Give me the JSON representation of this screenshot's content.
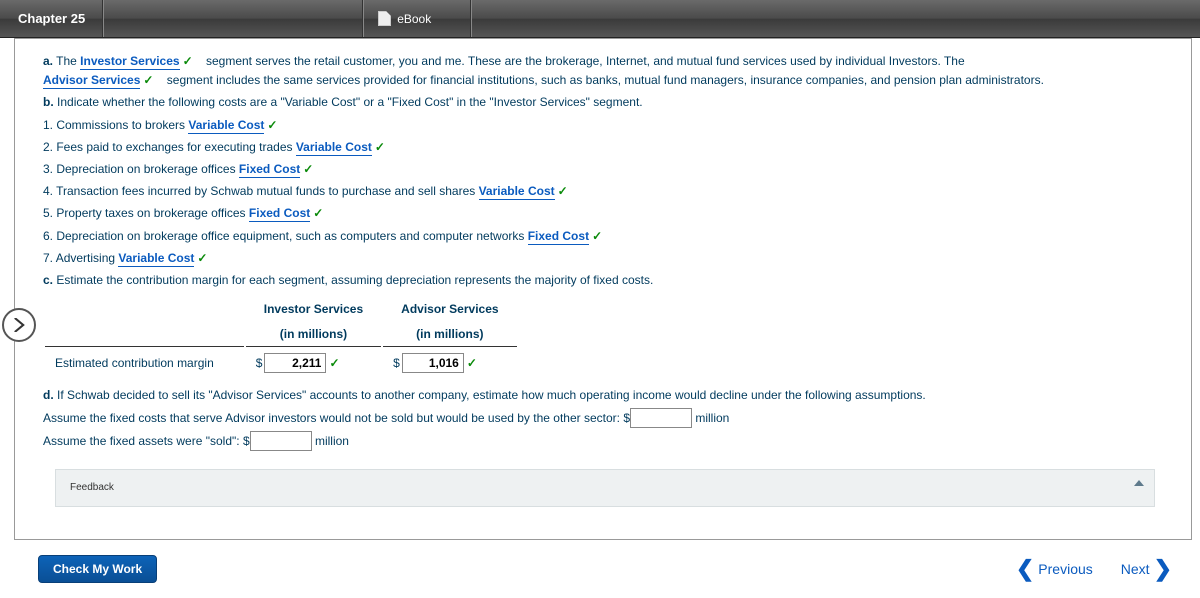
{
  "header": {
    "chapter": "Chapter 25",
    "ebook": "eBook"
  },
  "qa": {
    "a_label": "a.",
    "a_pre": " The ",
    "a_link1": "Investor Services",
    "a_mid1": " segment serves the retail customer, you and me. These are the brokerage, Internet, and mutual fund services used by individual Investors. The ",
    "a_link2": "Advisor Services",
    "a_mid2": " segment includes the same services provided for financial institutions, such as banks, mutual fund managers, insurance companies, and pension plan administrators."
  },
  "qb": {
    "label": "b.",
    "text": " Indicate whether the following costs are a \"Variable Cost\" or a \"Fixed Cost\" in the \"Investor Services\" segment.",
    "items": [
      {
        "n": "1.",
        "t": "Commissions to brokers ",
        "ans": "Variable Cost"
      },
      {
        "n": "2.",
        "t": "Fees paid to exchanges for executing trades ",
        "ans": "Variable Cost"
      },
      {
        "n": "3.",
        "t": "Depreciation on brokerage offices ",
        "ans": "Fixed Cost"
      },
      {
        "n": "4.",
        "t": "Transaction fees incurred by Schwab mutual funds to purchase and sell shares ",
        "ans": "Variable Cost"
      },
      {
        "n": "5.",
        "t": "Property taxes on brokerage offices ",
        "ans": "Fixed Cost"
      },
      {
        "n": "6.",
        "t": "Depreciation on brokerage office equipment, such as computers and computer networks ",
        "ans": "Fixed Cost"
      },
      {
        "n": "7.",
        "t": "Advertising ",
        "ans": "Variable Cost"
      }
    ]
  },
  "qc": {
    "label": "c.",
    "text": " Estimate the contribution margin for each segment, assuming depreciation represents the majority of fixed costs.",
    "col1_a": "Investor Services",
    "col1_b": "(in millions)",
    "col2_a": "Advisor Services",
    "col2_b": "(in millions)",
    "row_label": "Estimated contribution margin",
    "val1": "2,211",
    "val2": "1,016"
  },
  "qd": {
    "label": "d.",
    "text": " If Schwab decided to sell its \"Advisor Services\" accounts to another company, estimate how much operating income would decline under the following assumptions.",
    "line1_pre": "Assume the fixed costs that serve Advisor investors would not be sold but would be used by the other sector: $",
    "line1_post": " million",
    "line2_pre": "Assume the fixed assets were \"sold\": $",
    "line2_post": " million"
  },
  "feedback_label": "Feedback",
  "footer": {
    "check": "Check My Work",
    "prev": "Previous",
    "next": "Next"
  },
  "colors": {
    "link": "#0b5bbf",
    "check": "#0a8a0a",
    "body_text": "#003a5d"
  }
}
